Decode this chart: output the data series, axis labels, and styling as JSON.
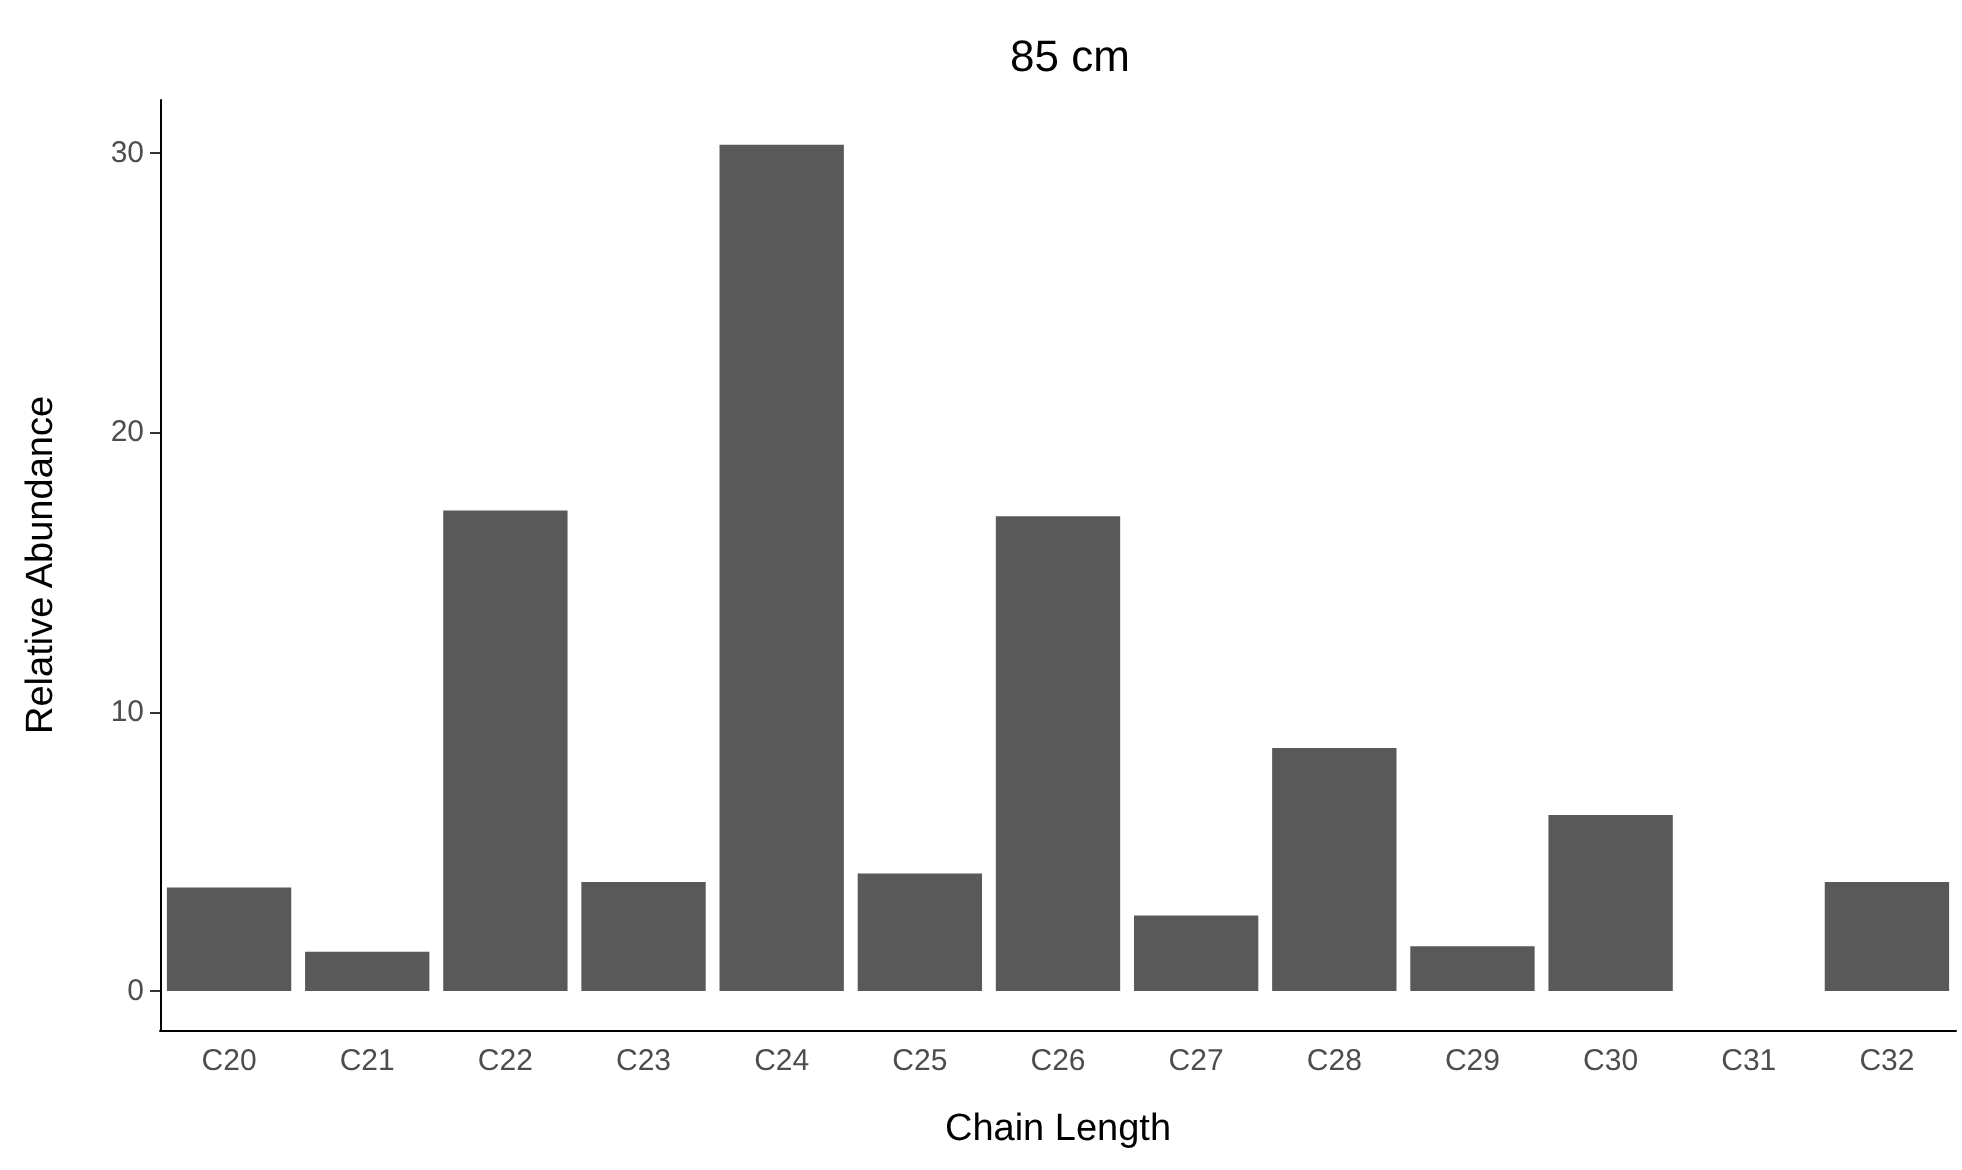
{
  "chart_data": {
    "type": "bar",
    "title": "85 cm",
    "xlabel": "Chain Length",
    "ylabel": "Relative Abundance",
    "categories": [
      "C20",
      "C21",
      "C22",
      "C23",
      "C24",
      "C25",
      "C26",
      "C27",
      "C28",
      "C29",
      "C30",
      "C31",
      "C32"
    ],
    "values": [
      3.7,
      1.4,
      17.2,
      3.9,
      30.3,
      4.2,
      17.0,
      2.7,
      8.7,
      1.6,
      6.3,
      0,
      3.9
    ],
    "color": "#595959",
    "ylim": [
      -1.4,
      31.9
    ],
    "yticks": [
      0,
      10,
      20,
      30
    ],
    "grid": false
  }
}
